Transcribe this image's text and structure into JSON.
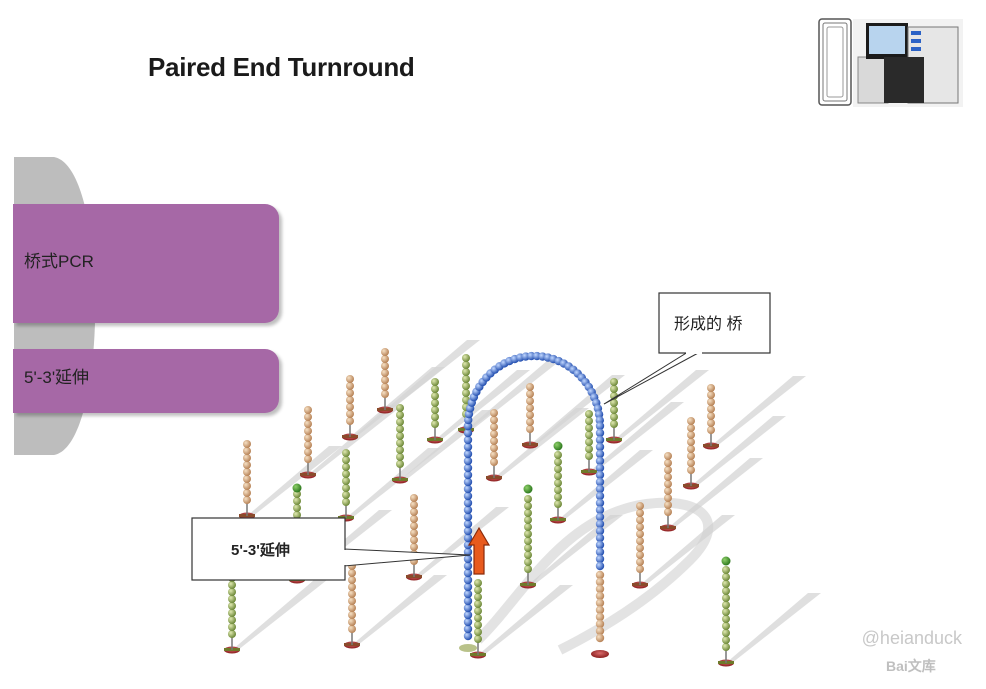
{
  "title": "Paired End Turnround",
  "logo_icon": "sequencer-machine-icon",
  "menu": {
    "item1": "桥式PCR",
    "item2": "5'-3'延伸"
  },
  "callouts": {
    "bridge": "形成的 桥",
    "extension": "5'-3'延伸"
  },
  "watermark": {
    "user": "@heianduck",
    "brand": "Bai文库"
  },
  "colors": {
    "menu_fill": "#a668a6",
    "strand_blue": "#3d6fd1",
    "bead_tan": "#d9a97a",
    "bead_green": "#8aa552",
    "arrow_red": "#e04a1a"
  }
}
